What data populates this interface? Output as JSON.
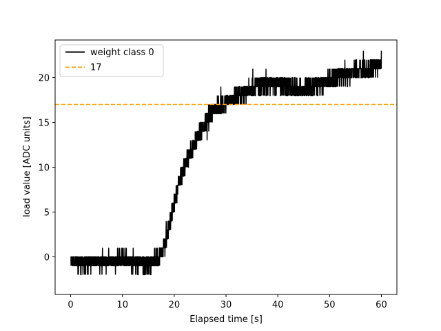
{
  "chart_data": {
    "type": "line",
    "title": "",
    "xlabel": "Elapsed time [s]",
    "ylabel": "load value [ADC units]",
    "xlim": [
      -3,
      63
    ],
    "ylim": [
      -4.2,
      24.2
    ],
    "xticks": [
      0,
      10,
      20,
      30,
      40,
      50,
      60
    ],
    "yticks": [
      0,
      5,
      10,
      15,
      20
    ],
    "grid": false,
    "legend_position": "top-left",
    "series": [
      {
        "name": "weight class 0",
        "color": "#000000",
        "style": "solid",
        "noise_amplitude": 1.0,
        "points": [
          [
            0,
            -0.5
          ],
          [
            2,
            -0.8
          ],
          [
            4,
            -0.6
          ],
          [
            6,
            -0.5
          ],
          [
            8,
            -0.6
          ],
          [
            9.5,
            0
          ],
          [
            10,
            0
          ],
          [
            11,
            -0.4
          ],
          [
            12,
            -0.7
          ],
          [
            14,
            -0.8
          ],
          [
            16,
            -0.5
          ],
          [
            17,
            0
          ],
          [
            18,
            1
          ],
          [
            19,
            3.5
          ],
          [
            20,
            6
          ],
          [
            21,
            8.5
          ],
          [
            22,
            10
          ],
          [
            23,
            11.5
          ],
          [
            24,
            12.8
          ],
          [
            25,
            14
          ],
          [
            26,
            15
          ],
          [
            27,
            16
          ],
          [
            28,
            16.5
          ],
          [
            29,
            16.9
          ],
          [
            30,
            17.2
          ],
          [
            31,
            17.5
          ],
          [
            32,
            17.8
          ],
          [
            33,
            18.2
          ],
          [
            34,
            18.4
          ],
          [
            35,
            18.8
          ],
          [
            37,
            19.2
          ],
          [
            39,
            19.3
          ],
          [
            41,
            19.2
          ],
          [
            43,
            18.7
          ],
          [
            45,
            18.6
          ],
          [
            47,
            19.0
          ],
          [
            49,
            19.5
          ],
          [
            51,
            19.9
          ],
          [
            53,
            20.4
          ],
          [
            55,
            20.7
          ],
          [
            57,
            20.9
          ],
          [
            59,
            21.3
          ],
          [
            60,
            21.6
          ]
        ],
        "peak": [
          60,
          23
        ]
      },
      {
        "name": "17",
        "color": "#ffa500",
        "style": "dashed",
        "y": 17
      }
    ]
  }
}
